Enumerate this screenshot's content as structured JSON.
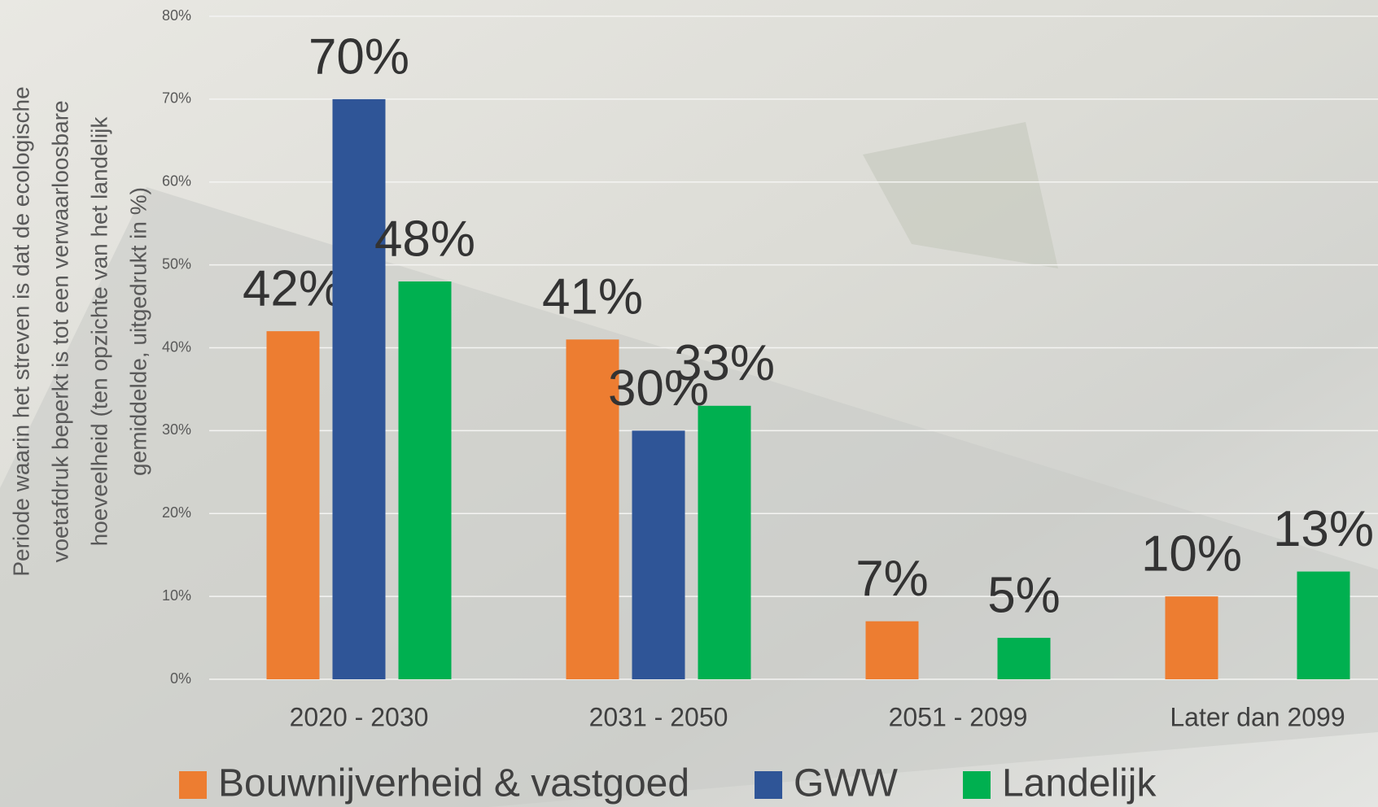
{
  "chart_data": {
    "type": "bar",
    "y_label": [
      "Periode waarin het streven is dat de ecologische",
      "voetafdruk beperkt is tot een verwaarloosbare",
      "hoeveelheid (ten opzichte van het landelijk",
      "gemiddelde, uitgedrukt in %)"
    ],
    "categories": [
      "2020 - 2030",
      "2031 - 2050",
      "2051 - 2099",
      "Later dan 2099"
    ],
    "series": [
      {
        "name": "Bouwnijverheid & vastgoed",
        "color": "#ed7d31",
        "values": [
          42,
          41,
          7,
          10
        ],
        "value_labels": [
          "42%",
          "41%",
          "7%",
          "10%"
        ]
      },
      {
        "name": "GWW",
        "color": "#2f5597",
        "values": [
          70,
          30,
          null,
          null
        ],
        "value_labels": [
          "70%",
          "30%",
          null,
          null
        ]
      },
      {
        "name": "Landelijk",
        "color": "#00b050",
        "values": [
          48,
          33,
          5,
          13
        ],
        "value_labels": [
          "48%",
          "33%",
          "5%",
          "13%"
        ]
      }
    ],
    "ylim": [
      0,
      80
    ],
    "yticks": [
      {
        "value": 0,
        "label": "0%"
      },
      {
        "value": 10,
        "label": "10%"
      },
      {
        "value": 20,
        "label": "20%"
      },
      {
        "value": 30,
        "label": "30%"
      },
      {
        "value": 40,
        "label": "40%"
      },
      {
        "value": 50,
        "label": "50%"
      },
      {
        "value": 60,
        "label": "60%"
      },
      {
        "value": 70,
        "label": "70%"
      },
      {
        "value": 80,
        "label": "80%"
      }
    ],
    "grid": true
  }
}
